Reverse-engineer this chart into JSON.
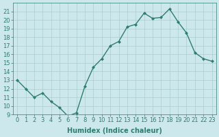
{
  "x": [
    0,
    1,
    2,
    3,
    4,
    5,
    6,
    7,
    8,
    9,
    10,
    11,
    12,
    13,
    14,
    15,
    16,
    17,
    18,
    19,
    20,
    21,
    22,
    23
  ],
  "y": [
    13,
    12,
    11,
    11.5,
    10.5,
    9.8,
    8.8,
    9.2,
    12.3,
    14.5,
    15.5,
    17,
    17.5,
    19.2,
    19.5,
    20.8,
    20.2,
    20.3,
    21.3,
    19.8,
    18.5,
    16.2,
    15.5,
    15.2
  ],
  "line_color": "#2e7d6e",
  "marker": "D",
  "marker_size": 2,
  "bg_color": "#cce8ec",
  "grid_color": "#aacccc",
  "xlabel": "Humidex (Indice chaleur)",
  "ylim": [
    9,
    22
  ],
  "xlim": [
    -0.5,
    23.5
  ],
  "yticks": [
    9,
    10,
    11,
    12,
    13,
    14,
    15,
    16,
    17,
    18,
    19,
    20,
    21
  ],
  "xticks": [
    0,
    1,
    2,
    3,
    4,
    5,
    6,
    7,
    8,
    9,
    10,
    11,
    12,
    13,
    14,
    15,
    16,
    17,
    18,
    19,
    20,
    21,
    22,
    23
  ],
  "xlabel_fontsize": 7,
  "tick_fontsize": 6,
  "line_width": 1.0
}
